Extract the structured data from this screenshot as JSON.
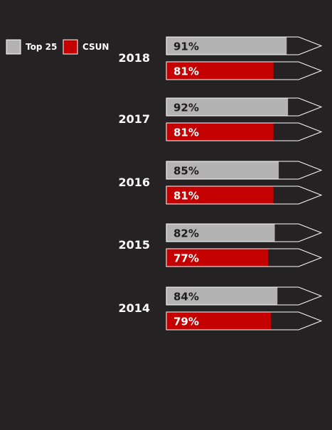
{
  "chart_data": {
    "type": "bar",
    "orientation": "horizontal",
    "value_format": "percent",
    "xlim": [
      0,
      100
    ],
    "legend_position": "top-left",
    "categories": [
      "2018",
      "2017",
      "2016",
      "2015",
      "2014"
    ],
    "series": [
      {
        "name": "Top 25",
        "color": "#b3b3b3",
        "values": [
          91,
          92,
          85,
          82,
          84
        ],
        "label_color": "#1f1c1d"
      },
      {
        "name": "CSUN",
        "color": "#c40000",
        "values": [
          81,
          81,
          81,
          77,
          79
        ],
        "label_color": "#ffffff"
      }
    ],
    "track_color": "#262223",
    "outline_color": "#ffffff"
  }
}
